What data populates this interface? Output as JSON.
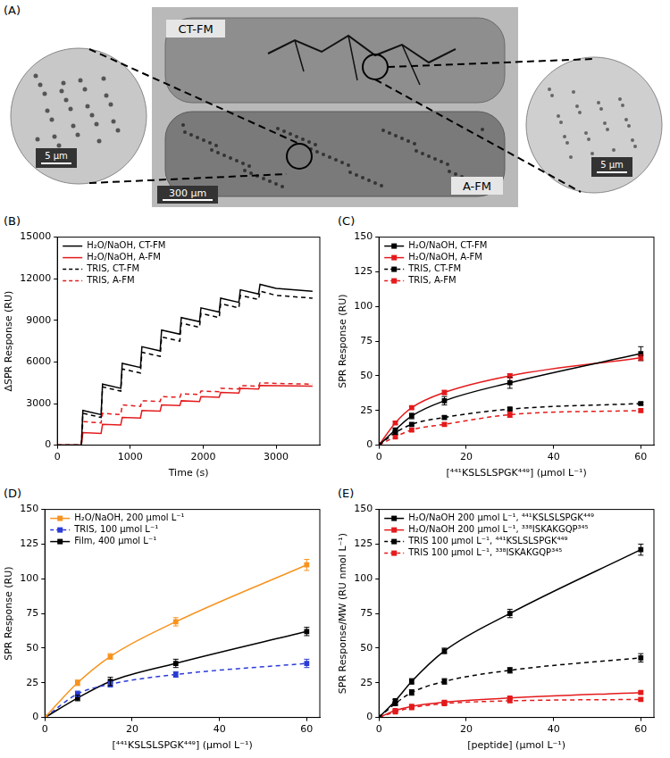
{
  "panel_a": {
    "label": "(A)",
    "image_labels": [
      "CT-FM",
      "A-FM"
    ],
    "scale_bars": {
      "left_inset": "5 µm",
      "center": "300 µm",
      "right_inset": "5 µm"
    }
  },
  "chart_data": [
    {
      "type": "line",
      "label": "(B)",
      "x_label": "Time (s)",
      "y_label": "ΔSPR Response (RU)",
      "xlim": [
        0,
        3600
      ],
      "xticks": [
        0,
        1000,
        2000,
        3000
      ],
      "ylim": [
        0,
        15000
      ],
      "yticks": [
        0,
        3000,
        6000,
        9000,
        12000,
        15000
      ],
      "grid": false,
      "legend": "upper left",
      "x": [
        0,
        330,
        350,
        600,
        620,
        870,
        890,
        1140,
        1160,
        1410,
        1430,
        1680,
        1700,
        1950,
        1970,
        2220,
        2240,
        2490,
        2510,
        2760,
        2780,
        3000,
        3500
      ],
      "series": [
        {
          "name": "H₂O/NaOH, CT-FM",
          "color": "#000000",
          "line_style": "solid",
          "marker": "none",
          "values": [
            0,
            0,
            2500,
            2200,
            4400,
            4100,
            5900,
            5600,
            7100,
            6800,
            8300,
            8000,
            9200,
            8900,
            9900,
            9600,
            10600,
            10300,
            11200,
            10900,
            11600,
            11300,
            11100
          ]
        },
        {
          "name": "H₂O/NaOH, A-FM",
          "color": "#e41a1c",
          "line_style": "solid",
          "marker": "none",
          "values": [
            0,
            0,
            900,
            850,
            1500,
            1450,
            2000,
            1950,
            2500,
            2450,
            2900,
            2850,
            3200,
            3150,
            3500,
            3450,
            3800,
            3750,
            4100,
            4050,
            4300,
            4280,
            4250
          ]
        },
        {
          "name": "TRIS, CT-FM",
          "color": "#000000",
          "line_style": "dashed",
          "marker": "none",
          "values": [
            0,
            0,
            2300,
            2000,
            4200,
            3900,
            5500,
            5200,
            6700,
            6400,
            7800,
            7500,
            8800,
            8500,
            9500,
            9200,
            10200,
            9900,
            10800,
            10500,
            11100,
            10800,
            10600
          ]
        },
        {
          "name": "TRIS, A-FM",
          "color": "#e41a1c",
          "line_style": "dashed",
          "marker": "none",
          "values": [
            0,
            0,
            1700,
            1600,
            2300,
            2200,
            2900,
            2800,
            3200,
            3150,
            3500,
            3450,
            3700,
            3650,
            3900,
            3850,
            4100,
            4050,
            4300,
            4250,
            4500,
            4450,
            4400
          ]
        }
      ]
    },
    {
      "type": "line",
      "label": "(C)",
      "x_label": "[⁴⁴¹KSLSLSPGK⁴⁴⁹] (µmol L⁻¹)",
      "y_label": "SPR Response (RU)",
      "xlim": [
        0,
        63
      ],
      "xticks": [
        0,
        20,
        40,
        60
      ],
      "ylim": [
        0,
        150
      ],
      "yticks": [
        0,
        25,
        50,
        75,
        100,
        125,
        150
      ],
      "grid": false,
      "legend": "upper left",
      "x": [
        0,
        3.75,
        7.5,
        15,
        30,
        60
      ],
      "series": [
        {
          "name": "H₂O/NaOH, CT-FM",
          "color": "#000000",
          "line_style": "solid",
          "marker": "square",
          "values": [
            0,
            11,
            21,
            32,
            45,
            66
          ],
          "errors": [
            0,
            1,
            2,
            3,
            4,
            5
          ]
        },
        {
          "name": "H₂O/NaOH, A-FM",
          "color": "#e41a1c",
          "line_style": "solid",
          "marker": "square",
          "values": [
            0,
            16,
            27,
            38,
            50,
            63
          ],
          "errors": [
            0,
            1,
            1,
            1.5,
            1.5,
            2
          ]
        },
        {
          "name": "TRIS, CT-FM",
          "color": "#000000",
          "line_style": "dashed",
          "marker": "square",
          "values": [
            0,
            9,
            15,
            20,
            26,
            30
          ],
          "errors": [
            0,
            1,
            1,
            1,
            1,
            1
          ]
        },
        {
          "name": "TRIS, A-FM",
          "color": "#e41a1c",
          "line_style": "dashed",
          "marker": "square",
          "values": [
            0,
            6,
            11,
            15,
            22,
            25
          ],
          "errors": [
            0,
            1,
            1,
            1,
            2,
            1
          ]
        }
      ]
    },
    {
      "type": "line",
      "label": "(D)",
      "x_label": "[⁴⁴¹KSLSLSPGK⁴⁴⁹] (µmol L⁻¹)",
      "y_label": "SPR Response (RU)",
      "xlim": [
        0,
        63
      ],
      "xticks": [
        0,
        20,
        40,
        60
      ],
      "ylim": [
        0,
        150
      ],
      "yticks": [
        0,
        25,
        50,
        75,
        100,
        125,
        150
      ],
      "grid": false,
      "legend": "upper left",
      "x": [
        0,
        7.5,
        15,
        30,
        60
      ],
      "series": [
        {
          "name": "H₂O/NaOH, 200 µmol L⁻¹",
          "color": "#f7931e",
          "line_style": "solid",
          "marker": "square",
          "values": [
            0,
            25,
            44,
            69,
            110
          ],
          "errors": [
            0,
            2,
            2,
            3,
            4
          ]
        },
        {
          "name": "TRIS, 100 µmol L⁻¹",
          "color": "#2a3bd6",
          "line_style": "dashed",
          "marker": "square",
          "values": [
            0,
            17,
            24,
            31,
            39
          ],
          "errors": [
            0,
            2,
            2,
            2,
            3
          ]
        },
        {
          "name": "Film, 400 µmol L⁻¹",
          "color": "#000000",
          "line_style": "solid",
          "marker": "square",
          "values": [
            0,
            14,
            26,
            39,
            62
          ],
          "errors": [
            0,
            2,
            3,
            3,
            3
          ]
        }
      ]
    },
    {
      "type": "line",
      "label": "(E)",
      "x_label": "[peptide] (µmol L⁻¹)",
      "y_label": "SPR Response/MW (RU nmol L⁻¹)",
      "xlim": [
        0,
        63
      ],
      "xticks": [
        0,
        20,
        40,
        60
      ],
      "ylim": [
        0,
        150
      ],
      "yticks": [
        0,
        25,
        50,
        75,
        100,
        125,
        150
      ],
      "grid": false,
      "legend": "upper left",
      "x": [
        0,
        3.75,
        7.5,
        15,
        30,
        60
      ],
      "series": [
        {
          "name": "H₂O/NaOH 200 µmol L⁻¹, ⁴⁴¹KSLSLSPGK⁴⁴⁹",
          "color": "#000000",
          "line_style": "solid",
          "marker": "square",
          "values": [
            0,
            12,
            26,
            48,
            75,
            121
          ],
          "errors": [
            0,
            1,
            2,
            2,
            3,
            4
          ]
        },
        {
          "name": "H₂O/NaOH 200 µmol L⁻¹, ³³⁸ISKAKGQP³⁴⁵",
          "color": "#e41a1c",
          "line_style": "solid",
          "marker": "square",
          "values": [
            0,
            5,
            8,
            11,
            14,
            18
          ],
          "errors": [
            0,
            1,
            1,
            1,
            1,
            1
          ]
        },
        {
          "name": "TRIS 100 µmol L⁻¹, ⁴⁴¹KSLSLSPGK⁴⁴⁹",
          "color": "#000000",
          "line_style": "dashed",
          "marker": "square",
          "values": [
            0,
            10,
            18,
            26,
            34,
            43
          ],
          "errors": [
            0,
            1,
            2,
            2,
            2,
            3
          ]
        },
        {
          "name": "TRIS 100 µmol L⁻¹, ³³⁸ISKAKGQP³⁴⁵",
          "color": "#e41a1c",
          "line_style": "dashed",
          "marker": "square",
          "values": [
            0,
            4,
            7,
            10,
            12,
            13
          ],
          "errors": [
            0,
            1,
            1,
            1,
            1,
            1
          ]
        }
      ]
    }
  ]
}
